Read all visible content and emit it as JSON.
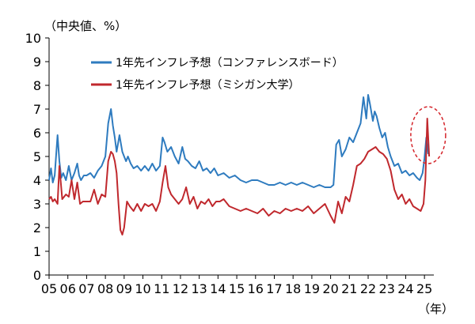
{
  "chart_data": {
    "type": "line",
    "title": "",
    "ylabel": "（中央値、%）",
    "xlabel": "（年）",
    "ylim": [
      0,
      10
    ],
    "xlim": [
      2005,
      2025.5
    ],
    "yticks": [
      0,
      1,
      2,
      3,
      4,
      5,
      6,
      7,
      8,
      9,
      10
    ],
    "xtick_labels": [
      "05",
      "06",
      "07",
      "08",
      "09",
      "10",
      "11",
      "12",
      "13",
      "14",
      "15",
      "16",
      "17",
      "18",
      "19",
      "20",
      "21",
      "22",
      "23",
      "24",
      "25"
    ],
    "grid": false,
    "legend_position": "top-left",
    "annotation": "dashed-red-ellipse-around-2025-values",
    "series": [
      {
        "name": "1年先インフレ予想（コンファレンスボード）",
        "color": "#2e7bbf",
        "x": [
          2005.0,
          2005.1,
          2005.2,
          2005.3,
          2005.45,
          2005.55,
          2005.65,
          2005.75,
          2005.9,
          2006.05,
          2006.2,
          2006.35,
          2006.5,
          2006.6,
          2006.7,
          2006.85,
          2007.0,
          2007.2,
          2007.4,
          2007.6,
          2007.8,
          2008.0,
          2008.15,
          2008.3,
          2008.4,
          2008.5,
          2008.6,
          2008.75,
          2008.9,
          2009.0,
          2009.1,
          2009.2,
          2009.35,
          2009.5,
          2009.7,
          2009.9,
          2010.1,
          2010.3,
          2010.5,
          2010.7,
          2010.9,
          2011.05,
          2011.15,
          2011.3,
          2011.5,
          2011.7,
          2011.9,
          2012.1,
          2012.25,
          2012.4,
          2012.6,
          2012.8,
          2013.0,
          2013.2,
          2013.4,
          2013.6,
          2013.8,
          2014.0,
          2014.3,
          2014.6,
          2014.9,
          2015.2,
          2015.5,
          2015.8,
          2016.1,
          2016.4,
          2016.7,
          2017.0,
          2017.3,
          2017.6,
          2017.9,
          2018.2,
          2018.5,
          2018.8,
          2019.1,
          2019.4,
          2019.7,
          2020.0,
          2020.15,
          2020.3,
          2020.45,
          2020.6,
          2020.8,
          2021.0,
          2021.2,
          2021.4,
          2021.6,
          2021.75,
          2021.9,
          2022.0,
          2022.1,
          2022.25,
          2022.35,
          2022.45,
          2022.6,
          2022.75,
          2022.9,
          2023.05,
          2023.2,
          2023.4,
          2023.6,
          2023.8,
          2024.0,
          2024.2,
          2024.4,
          2024.6,
          2024.75,
          2024.9,
          2025.0,
          2025.1,
          2025.2
        ],
        "values": [
          4.0,
          4.5,
          3.9,
          4.2,
          5.9,
          4.8,
          4.1,
          4.3,
          4.0,
          4.6,
          4.0,
          4.3,
          4.7,
          4.2,
          4.0,
          4.2,
          4.2,
          4.3,
          4.1,
          4.4,
          4.6,
          5.0,
          6.4,
          7.0,
          6.3,
          5.8,
          5.2,
          5.9,
          5.2,
          5.0,
          4.8,
          5.0,
          4.7,
          4.5,
          4.6,
          4.4,
          4.6,
          4.4,
          4.7,
          4.4,
          4.6,
          5.8,
          5.6,
          5.2,
          5.4,
          5.0,
          4.7,
          5.4,
          4.9,
          4.8,
          4.6,
          4.5,
          4.8,
          4.4,
          4.5,
          4.3,
          4.5,
          4.2,
          4.3,
          4.1,
          4.2,
          4.0,
          3.9,
          4.0,
          4.0,
          3.9,
          3.8,
          3.8,
          3.9,
          3.8,
          3.9,
          3.8,
          3.9,
          3.8,
          3.7,
          3.8,
          3.7,
          3.7,
          3.8,
          5.5,
          5.7,
          5.0,
          5.3,
          5.8,
          5.6,
          6.0,
          6.4,
          7.5,
          6.6,
          7.6,
          7.2,
          6.5,
          6.9,
          6.7,
          6.2,
          5.8,
          6.0,
          5.4,
          5.0,
          4.6,
          4.7,
          4.3,
          4.4,
          4.2,
          4.3,
          4.1,
          4.0,
          4.3,
          4.9,
          5.8,
          5.1
        ]
      },
      {
        "name": "1年先インフレ予想（ミシガン大学）",
        "color": "#c0282d",
        "x": [
          2005.0,
          2005.1,
          2005.2,
          2005.3,
          2005.45,
          2005.55,
          2005.7,
          2005.9,
          2006.05,
          2006.2,
          2006.35,
          2006.5,
          2006.65,
          2006.8,
          2007.0,
          2007.2,
          2007.4,
          2007.6,
          2007.8,
          2008.0,
          2008.15,
          2008.3,
          2008.4,
          2008.5,
          2008.6,
          2008.7,
          2008.8,
          2008.9,
          2009.0,
          2009.15,
          2009.3,
          2009.5,
          2009.7,
          2009.9,
          2010.1,
          2010.3,
          2010.5,
          2010.7,
          2010.9,
          2011.05,
          2011.2,
          2011.35,
          2011.5,
          2011.7,
          2011.9,
          2012.1,
          2012.3,
          2012.5,
          2012.7,
          2012.9,
          2013.1,
          2013.3,
          2013.5,
          2013.7,
          2013.9,
          2014.1,
          2014.3,
          2014.6,
          2014.9,
          2015.2,
          2015.5,
          2015.8,
          2016.1,
          2016.4,
          2016.7,
          2017.0,
          2017.3,
          2017.6,
          2017.9,
          2018.2,
          2018.5,
          2018.8,
          2019.1,
          2019.4,
          2019.7,
          2020.0,
          2020.2,
          2020.4,
          2020.6,
          2020.8,
          2021.0,
          2021.2,
          2021.4,
          2021.6,
          2021.8,
          2022.0,
          2022.2,
          2022.4,
          2022.6,
          2022.8,
          2023.0,
          2023.2,
          2023.4,
          2023.6,
          2023.8,
          2024.0,
          2024.2,
          2024.4,
          2024.6,
          2024.8,
          2024.95,
          2025.05,
          2025.15,
          2025.25
        ],
        "values": [
          3.2,
          3.3,
          3.1,
          3.2,
          3.0,
          4.6,
          3.2,
          3.4,
          3.3,
          4.0,
          3.2,
          3.9,
          3.0,
          3.1,
          3.1,
          3.1,
          3.6,
          3.0,
          3.4,
          3.3,
          4.8,
          5.2,
          5.1,
          4.8,
          4.3,
          3.0,
          1.9,
          1.7,
          2.0,
          3.1,
          2.9,
          2.7,
          3.0,
          2.7,
          3.0,
          2.9,
          3.0,
          2.7,
          3.1,
          3.9,
          4.6,
          3.7,
          3.4,
          3.2,
          3.0,
          3.2,
          3.7,
          3.0,
          3.3,
          2.8,
          3.1,
          3.0,
          3.2,
          2.9,
          3.1,
          3.1,
          3.2,
          2.9,
          2.8,
          2.7,
          2.8,
          2.7,
          2.6,
          2.8,
          2.5,
          2.7,
          2.6,
          2.8,
          2.7,
          2.8,
          2.7,
          2.9,
          2.6,
          2.8,
          3.0,
          2.5,
          2.2,
          3.1,
          2.6,
          3.3,
          3.1,
          3.8,
          4.6,
          4.7,
          4.9,
          5.2,
          5.3,
          5.4,
          5.2,
          5.1,
          4.9,
          4.4,
          3.6,
          3.2,
          3.4,
          3.0,
          3.2,
          2.9,
          2.8,
          2.7,
          3.0,
          4.0,
          6.6,
          5.0
        ]
      }
    ]
  }
}
